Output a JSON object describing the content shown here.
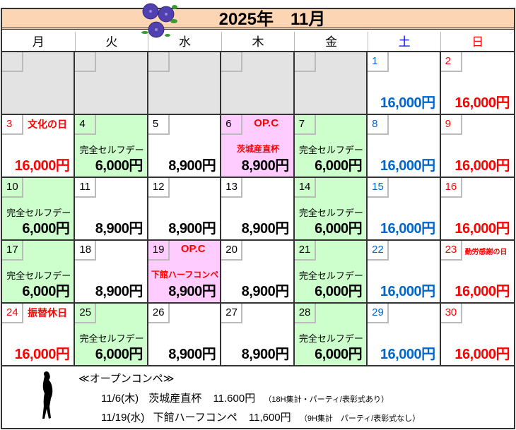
{
  "title": "2025年　11月",
  "weekdays": [
    {
      "label": "月",
      "color": "#000000"
    },
    {
      "label": "火",
      "color": "#000000"
    },
    {
      "label": "水",
      "color": "#000000"
    },
    {
      "label": "木",
      "color": "#000000"
    },
    {
      "label": "金",
      "color": "#000000"
    },
    {
      "label": "土",
      "color": "#0000ff"
    },
    {
      "label": "日",
      "color": "#ff0000"
    }
  ],
  "colors": {
    "title_bg": "#fcd5b4",
    "empty": "#e3e3e3",
    "self_day": "#ccffcc",
    "open_comp": "#ffccff",
    "saturday": "#0066cc",
    "sunday": "#ff0000"
  },
  "days": [
    {
      "num": ""
    },
    {
      "num": ""
    },
    {
      "num": ""
    },
    {
      "num": ""
    },
    {
      "num": ""
    },
    {
      "num": "1",
      "type": "sat",
      "price": "16,000円"
    },
    {
      "num": "2",
      "type": "sun",
      "price": "16,000円"
    },
    {
      "num": "3",
      "type": "sun",
      "tag": "文化の日",
      "price": "16,000円"
    },
    {
      "num": "4",
      "type": "self",
      "label": "完全セルフデー",
      "price": "6,000円"
    },
    {
      "num": "5",
      "price": "8,900円"
    },
    {
      "num": "6",
      "type": "op",
      "tag": "OP.C",
      "label": "茨城産直杯",
      "price": "8,900円"
    },
    {
      "num": "7",
      "type": "self",
      "label": "完全セルフデー",
      "price": "6,000円"
    },
    {
      "num": "8",
      "type": "sat",
      "price": "16,000円"
    },
    {
      "num": "9",
      "type": "sun",
      "price": "16,000円"
    },
    {
      "num": "10",
      "type": "self",
      "label": "完全セルフデー",
      "price": "6,000円"
    },
    {
      "num": "11",
      "price": "8,900円"
    },
    {
      "num": "12",
      "price": "8,900円"
    },
    {
      "num": "13",
      "price": "8,900円"
    },
    {
      "num": "14",
      "type": "self",
      "label": "完全セルフデー",
      "price": "6,000円"
    },
    {
      "num": "15",
      "type": "sat",
      "price": "16,000円"
    },
    {
      "num": "16",
      "type": "sun",
      "price": "16,000円"
    },
    {
      "num": "17",
      "type": "self",
      "label": "完全セルフデー",
      "price": "6,000円"
    },
    {
      "num": "18",
      "price": "8,900円"
    },
    {
      "num": "19",
      "type": "op",
      "tag": "OP.C",
      "label": "下館ハーフコンペ",
      "price": "8,900円"
    },
    {
      "num": "20",
      "price": "8,900円"
    },
    {
      "num": "21",
      "type": "self",
      "label": "完全セルフデー",
      "price": "6,000円"
    },
    {
      "num": "22",
      "type": "sat",
      "price": "16,000円"
    },
    {
      "num": "23",
      "type": "sun",
      "tag": "勤労感謝の日",
      "tag_small": true,
      "price": "16,000円"
    },
    {
      "num": "24",
      "type": "sun",
      "tag": "振替休日",
      "price": "16,000円"
    },
    {
      "num": "25",
      "type": "self",
      "label": "完全セルフデー",
      "price": "6,000円"
    },
    {
      "num": "26",
      "price": "8,900円"
    },
    {
      "num": "27",
      "price": "8,900円"
    },
    {
      "num": "28",
      "type": "self",
      "label": "完全セルフデー",
      "price": "6,000円"
    },
    {
      "num": "29",
      "type": "sat",
      "price": "16,000円"
    },
    {
      "num": "30",
      "type": "sun",
      "price": "16,000円"
    }
  ],
  "footer": {
    "heading": "≪オープンコンペ≫",
    "events": [
      {
        "date": "11/6(木)",
        "name": "茨城産直杯",
        "price": "11.600円",
        "note": "（18H集計・パーティ/表彰式あり）"
      },
      {
        "date": "11/19(水)",
        "name": "下館ハーフコンペ",
        "price": "11,600円",
        "note": "（9H集計　パーティ/表彰式なし）"
      }
    ]
  }
}
